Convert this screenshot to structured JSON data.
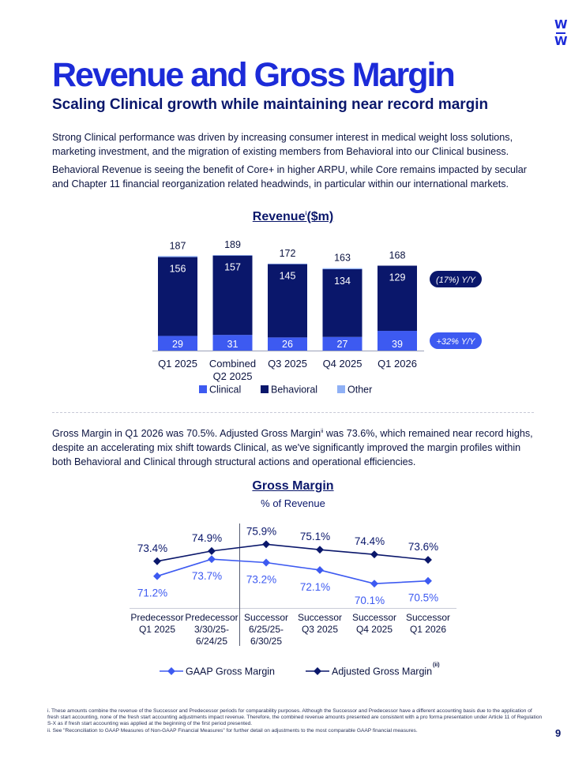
{
  "logo": {
    "line1": "W",
    "line2": "W"
  },
  "page": {
    "title": "Revenue and Gross Margin",
    "subtitle": "Scaling Clinical growth while maintaining near record margin",
    "para1": "Strong Clinical performance was driven by increasing consumer interest in medical weight loss solutions, marketing investment, and the migration of existing members from Behavioral into our Clinical business.",
    "para2": "Behavioral Revenue is seeing the benefit of Core+ in higher ARPU, while Core remains impacted by secular and Chapter 11 financial reorganization related headwinds, in particular within our international markets.",
    "para3_a": "Gross Margin in Q1 2026 was 70.5%. Adjusted Gross Margin",
    "para3_sup": "ii",
    "para3_b": " was 73.6%, which remained near record highs, despite an accelerating mix shift towards Clinical, as we've significantly improved the margin profiles within both Behavioral and Clinical through structural actions and operational efficiencies.",
    "footnote_i": "i. These amounts combine the revenue of the Successor and Predecessor periods for comparability purposes. Although the Successor and Predecessor have a different accounting basis due to the application of fresh start accounting, none of the fresh start accounting adjustments impact revenue. Therefore, the combined revenue amounts presented are consistent with a pro forma presentation under Article 11 of Regulation S-X as if fresh start accounting was applied at the beginning of the first period presented.",
    "footnote_ii": "ii. See \"Reconciliation to GAAP Measures of Non-GAAP Financial Measures\" for further detail on adjustments to the most comparable GAAP financial measures.",
    "page_number": "9"
  },
  "chart_data": [
    {
      "type": "bar",
      "stacked": true,
      "title": "Revenue",
      "title_sup": "i",
      "title_suffix": "($m)",
      "categories": [
        [
          "Q1 2025"
        ],
        [
          "Combined",
          "Q2 2025"
        ],
        [
          "Q3 2025"
        ],
        [
          "Q4 2025"
        ],
        [
          "Q1 2026"
        ]
      ],
      "series": [
        {
          "name": "Clinical",
          "color": "#3d5af1",
          "values": [
            29,
            31,
            26,
            27,
            39
          ],
          "yoy": "+32% Y/Y"
        },
        {
          "name": "Behavioral",
          "color": "#0a176b",
          "values": [
            156,
            157,
            145,
            134,
            129
          ],
          "yoy": "(17%) Y/Y"
        },
        {
          "name": "Other",
          "color": "#8fb0f5",
          "values": [
            2,
            1,
            1,
            2,
            0
          ]
        }
      ],
      "totals": [
        187,
        189,
        172,
        163,
        168
      ],
      "legend": "bottom",
      "grid": false
    },
    {
      "type": "line",
      "title": "Gross Margin",
      "subtitle": "% of Revenue",
      "categories": [
        [
          "Predecessor",
          "Q1 2025"
        ],
        [
          "Predecessor",
          "3/30/25-",
          "6/24/25"
        ],
        [
          "Successor",
          "6/25/25-",
          "6/30/25"
        ],
        [
          "Successor",
          "Q3 2025"
        ],
        [
          "Successor",
          "Q4 2025"
        ],
        [
          "Successor",
          "Q1 2026"
        ]
      ],
      "series": [
        {
          "name": "GAAP Gross Margin",
          "color": "#3d5af1",
          "values": [
            71.2,
            73.7,
            73.2,
            72.1,
            70.1,
            70.5
          ]
        },
        {
          "name": "Adjusted Gross Margin",
          "sup": "(ii)",
          "color": "#0a176b",
          "values": [
            73.4,
            74.9,
            75.9,
            75.1,
            74.4,
            73.6
          ]
        }
      ],
      "value_suffix": "%",
      "legend": "bottom",
      "grid": false
    }
  ]
}
